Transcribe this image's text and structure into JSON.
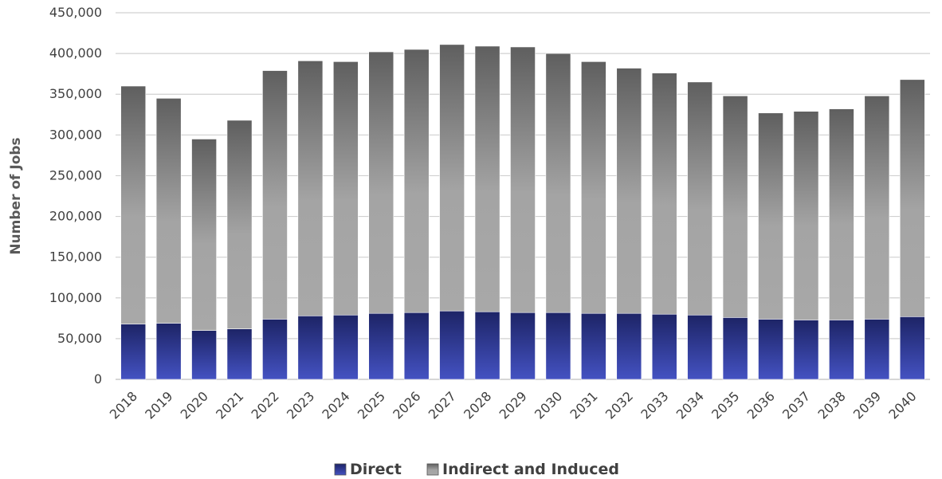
{
  "chart_data": {
    "type": "bar",
    "stacked": true,
    "title": "",
    "xlabel": "",
    "ylabel": "Number of Jobs",
    "ylim": [
      0,
      450000
    ],
    "y_ticks": [
      "0",
      "50,000",
      "100,000",
      "150,000",
      "200,000",
      "250,000",
      "300,000",
      "350,000",
      "400,000",
      "450,000"
    ],
    "y_tick_values": [
      0,
      50000,
      100000,
      150000,
      200000,
      250000,
      300000,
      350000,
      400000,
      450000
    ],
    "grid": true,
    "legend_position": "bottom",
    "categories": [
      "2018",
      "2019",
      "2020",
      "2021",
      "2022",
      "2023",
      "2024",
      "2025",
      "2026",
      "2027",
      "2028",
      "2029",
      "2030",
      "2031",
      "2032",
      "2033",
      "2034",
      "2035",
      "2036",
      "2037",
      "2038",
      "2039",
      "2040"
    ],
    "series": [
      {
        "name": "Direct",
        "color": "#3a46a8",
        "values": [
          68000,
          69000,
          60000,
          62000,
          74000,
          78000,
          79000,
          81000,
          82000,
          84000,
          83000,
          82000,
          82000,
          81000,
          81000,
          80000,
          79000,
          76000,
          74000,
          73000,
          73000,
          74000,
          77000
        ]
      },
      {
        "name": "Indirect and Induced",
        "color": "#8c8c8c",
        "values": [
          292000,
          276000,
          235000,
          256000,
          305000,
          313000,
          311000,
          321000,
          323000,
          327000,
          326000,
          326000,
          318000,
          309000,
          301000,
          296000,
          286000,
          272000,
          253000,
          256000,
          259000,
          274000,
          291000
        ]
      }
    ]
  }
}
